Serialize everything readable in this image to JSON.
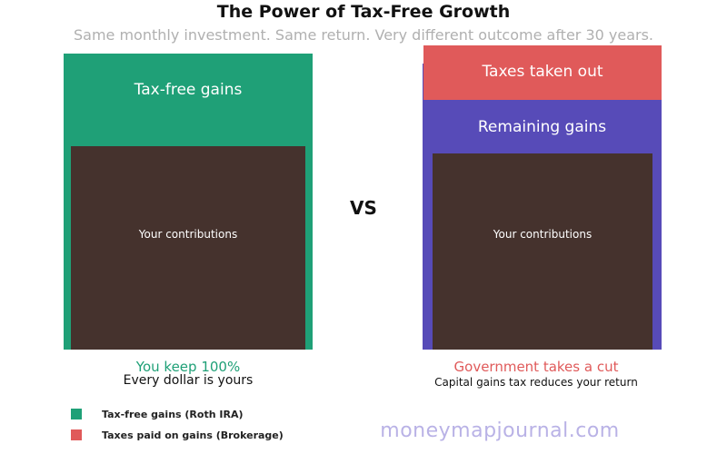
{
  "header": {
    "title": "The Power of Tax-Free Growth",
    "subtitle": "Same monthly investment. Same return. Very different outcome after 30 years."
  },
  "left_panel": {
    "gains_label": "Tax-free gains",
    "contributions_label": "Your contributions",
    "headline": "You keep 100%",
    "caption": "Every dollar is yours"
  },
  "right_panel": {
    "taxes_label": "Taxes taken out",
    "gains_label": "Remaining gains",
    "contributions_label": "Your contributions",
    "headline": "Government takes a cut",
    "caption": "Capital gains tax reduces your return"
  },
  "vs_label": "VS",
  "legend": [
    {
      "label": "Tax-free gains (Roth IRA)",
      "color": "#1fa077"
    },
    {
      "label": "Taxes paid on gains (Brokerage)",
      "color": "#e05a5a"
    }
  ],
  "colors": {
    "green": "#1fa077",
    "purple": "#574bb8",
    "red": "#e05a5a",
    "brown": "#45322d"
  },
  "watermark": "moneymapjournal.com"
}
